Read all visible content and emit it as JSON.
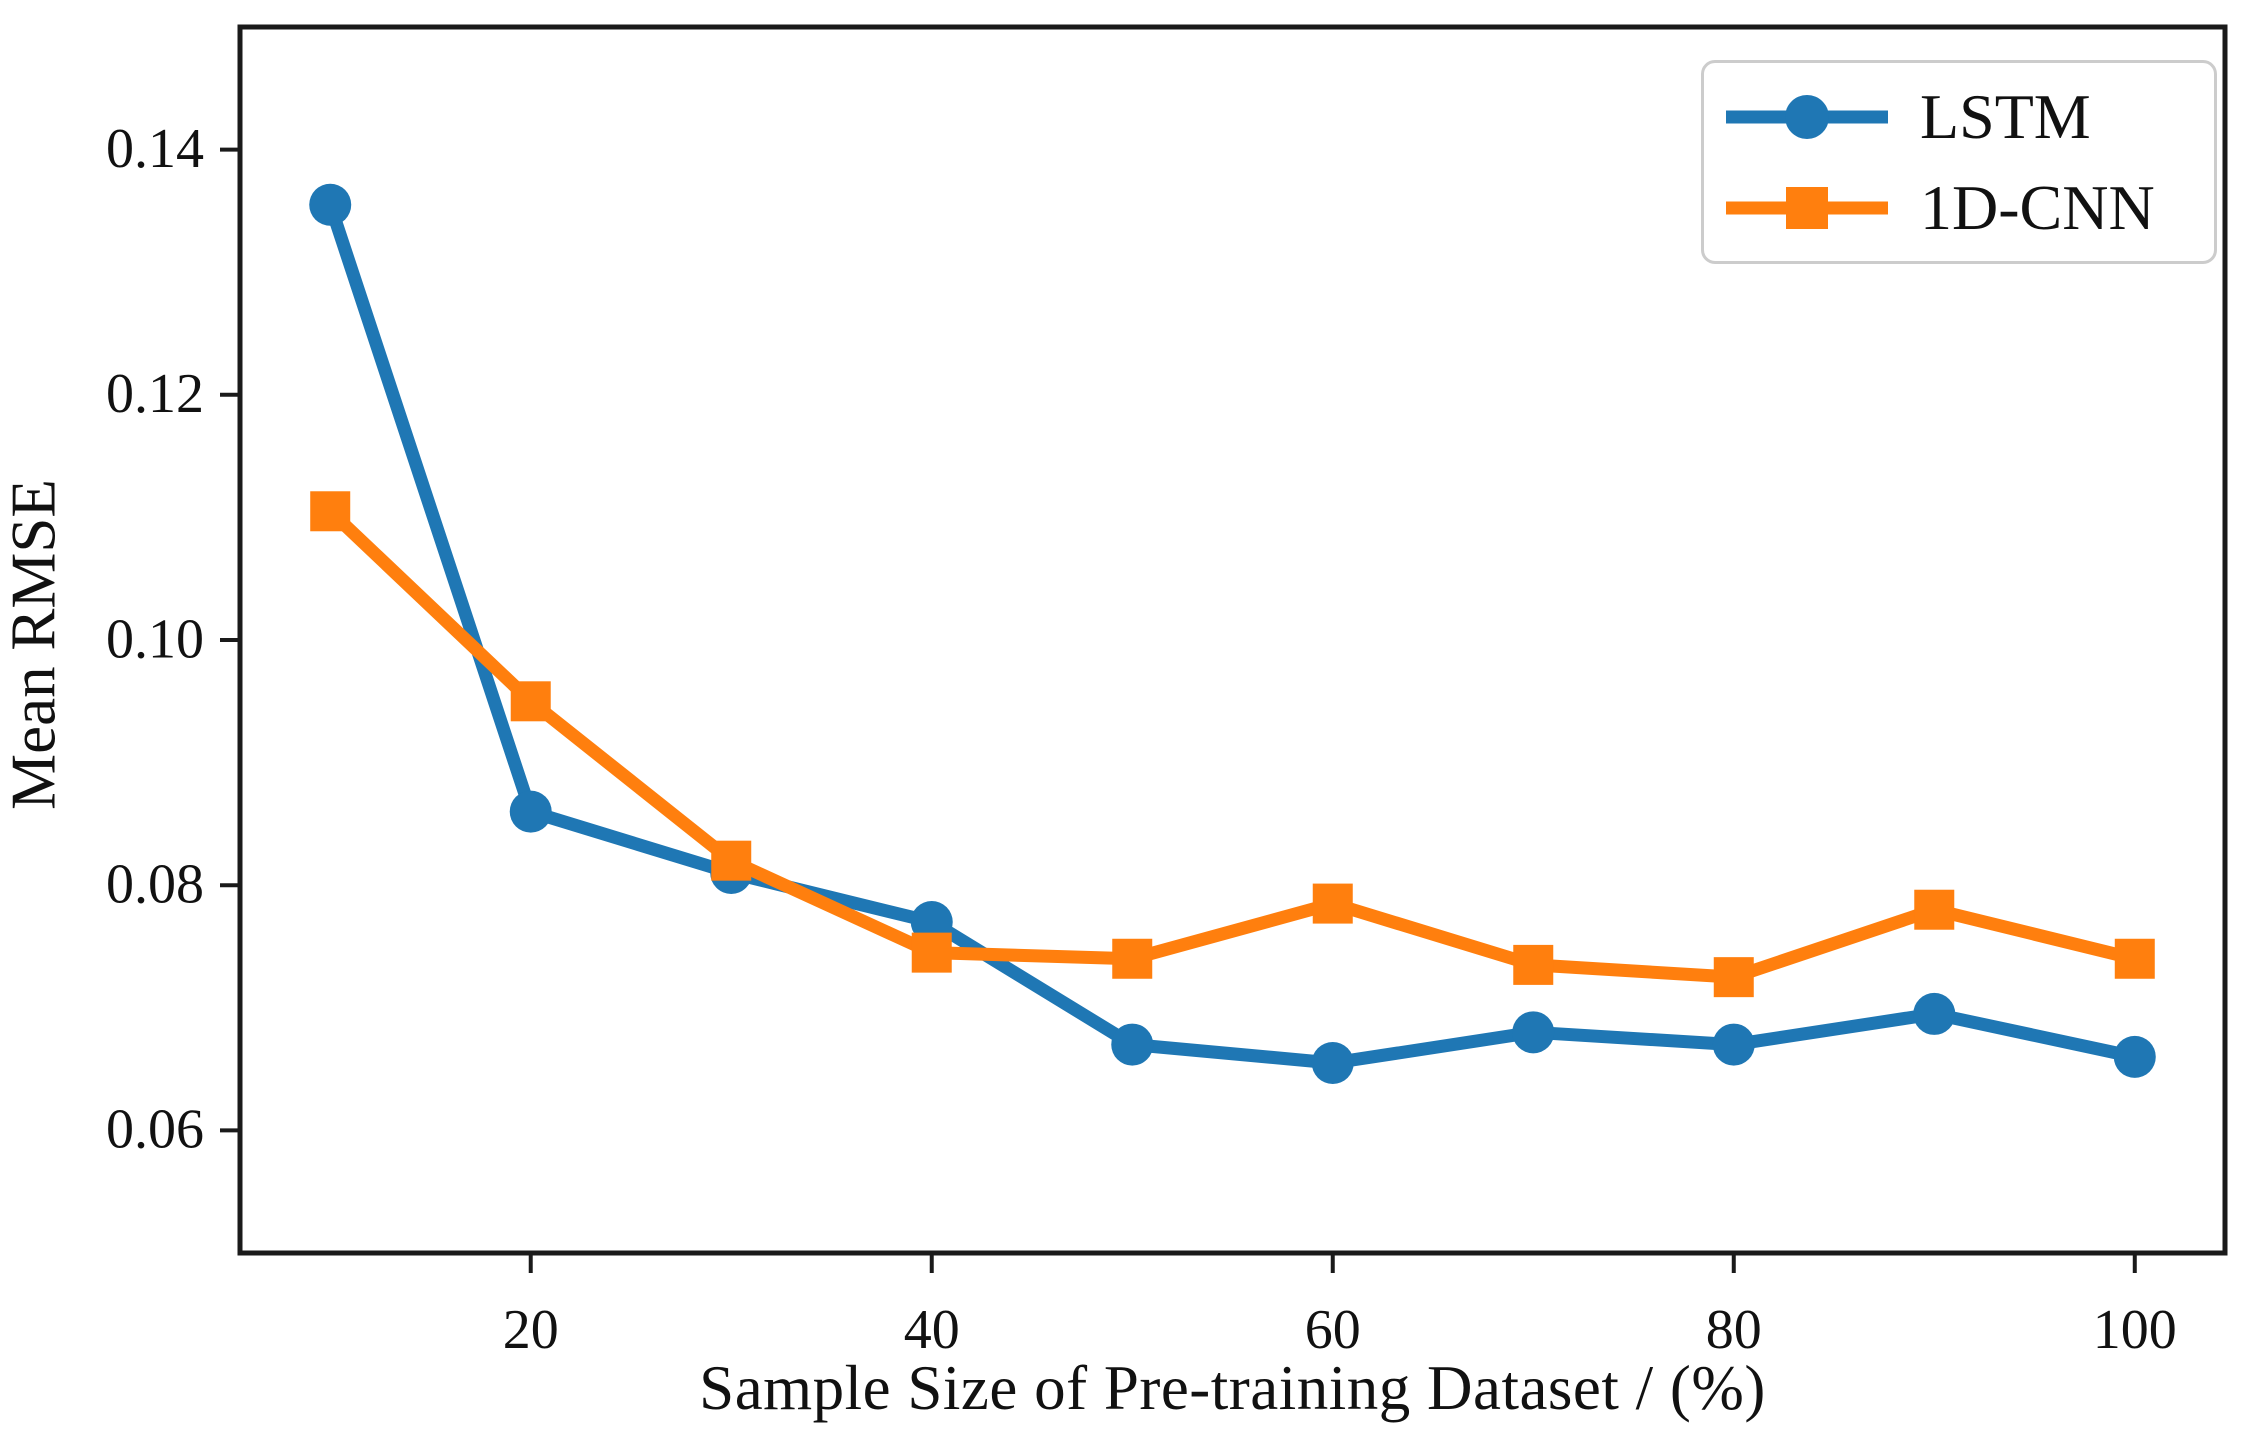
{
  "figure": {
    "background": "#ffffff",
    "frame_color": "#1a1a1a",
    "tick_color": "#1a1a1a"
  },
  "chart_data": {
    "type": "line",
    "title": "",
    "xlabel": "Sample Size of Pre-training Dataset / (%)",
    "ylabel": "Mean RMSE",
    "x": [
      10,
      20,
      30,
      40,
      50,
      60,
      70,
      80,
      90,
      100
    ],
    "series": [
      {
        "name": "LSTM",
        "color": "#1f77b4",
        "marker": "circle",
        "values": [
          0.1355,
          0.086,
          0.081,
          0.077,
          0.067,
          0.0655,
          0.068,
          0.067,
          0.0695,
          0.066
        ]
      },
      {
        "name": "1D-CNN",
        "color": "#ff7f0e",
        "marker": "square",
        "values": [
          0.1105,
          0.095,
          0.082,
          0.0745,
          0.074,
          0.0785,
          0.0735,
          0.0725,
          0.078,
          0.074
        ]
      }
    ],
    "xlim": [
      5.5,
      104.5
    ],
    "ylim": [
      0.05,
      0.15
    ],
    "xticks": [
      "20",
      "40",
      "60",
      "80",
      "100"
    ],
    "yticks": [
      "0.06",
      "0.08",
      "0.10",
      "0.12",
      "0.14"
    ],
    "grid": false,
    "legend_position": "upper right"
  }
}
